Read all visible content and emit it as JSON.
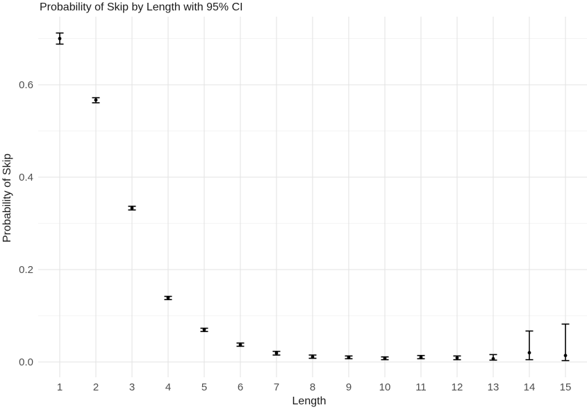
{
  "chart_data": {
    "type": "scatter",
    "title": "Probability of Skip by Length with 95% CI",
    "xlabel": "Length",
    "ylabel": "Probability of Skip",
    "marker": "point_with_errorbar",
    "ci_level": "95%",
    "legend": "none",
    "grid": "horizontal_major_and_minor_vertical_major",
    "x": [
      1,
      2,
      3,
      4,
      5,
      6,
      7,
      8,
      9,
      10,
      11,
      12,
      13,
      14,
      15
    ],
    "series": [
      {
        "name": "probability_of_skip",
        "values": [
          0.7,
          0.567,
          0.333,
          0.139,
          0.07,
          0.037,
          0.019,
          0.011,
          0.01,
          0.008,
          0.01,
          0.009,
          0.007,
          0.02,
          0.014
        ],
        "ci_lower": [
          0.688,
          0.561,
          0.329,
          0.135,
          0.066,
          0.034,
          0.015,
          0.008,
          0.007,
          0.005,
          0.007,
          0.005,
          0.004,
          0.005,
          0.003
        ],
        "ci_upper": [
          0.712,
          0.572,
          0.337,
          0.142,
          0.073,
          0.041,
          0.023,
          0.015,
          0.013,
          0.011,
          0.014,
          0.013,
          0.016,
          0.067,
          0.082
        ]
      }
    ],
    "x_ticks": [
      1,
      2,
      3,
      4,
      5,
      6,
      7,
      8,
      9,
      10,
      11,
      12,
      13,
      14,
      15
    ],
    "y_ticks": [
      0.0,
      0.2,
      0.4,
      0.6
    ],
    "y_minor_gridlines": [
      0.1,
      0.3,
      0.5,
      0.7
    ],
    "xlim": [
      0.4,
      15.6
    ],
    "ylim": [
      -0.033,
      0.748
    ],
    "colors": {
      "point": "#000000",
      "grid_major": "#e3e3e3",
      "grid_minor": "#f0f0f0",
      "axis_text": "#4d4d4d",
      "title_text": "#1a1a1a",
      "background": "#ffffff"
    }
  }
}
